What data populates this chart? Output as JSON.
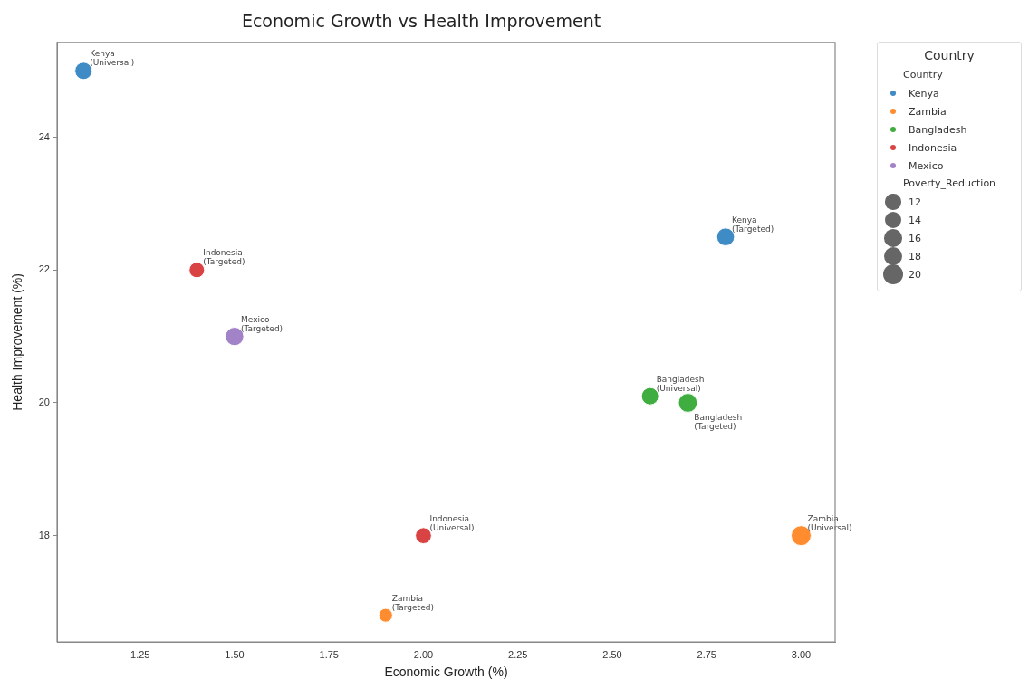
{
  "chart_data": {
    "type": "bubble",
    "title": "Economic Growth vs Health Improvement",
    "xlabel": "Economic Growth (%)",
    "ylabel": "Health Improvement (%)",
    "legend_title": "Country",
    "legend": "right",
    "grid": false,
    "xlim": [
      1.03,
      3.09
    ],
    "xticks": [
      1.25,
      {
        "value": 1.5,
        "label": "1.50"
      },
      1.75,
      {
        "value": 2.0,
        "label": "2.00"
      },
      2.25,
      {
        "value": 2.5,
        "label": "2.50"
      },
      2.75,
      {
        "value": 3.0,
        "label": "3.00"
      }
    ],
    "ylim": [
      16.4,
      25.43
    ],
    "yticks": [
      18,
      20,
      22,
      24
    ],
    "size_legend": [
      12,
      14,
      16,
      18,
      20
    ],
    "series": [
      {
        "name": "Kenya",
        "color": "#3f8bc6",
        "x": [
          1.1,
          2.8
        ],
        "values": [
          25.0,
          22.5
        ],
        "sizes": [
          15,
          16
        ]
      },
      {
        "name": "Zambia",
        "color": "#ff8c2e",
        "x": [
          3.0,
          1.9
        ],
        "values": [
          18.0,
          16.8
        ],
        "sizes": [
          20,
          9.5
        ]
      },
      {
        "name": "Bangladesh",
        "color": "#3fad3f",
        "x": [
          2.6,
          2.7
        ],
        "values": [
          20.1,
          20.0
        ],
        "sizes": [
          15,
          18
        ]
      },
      {
        "name": "Indonesia",
        "color": "#d94343",
        "x": [
          1.4,
          2.0
        ],
        "values": [
          22.0,
          18.0
        ],
        "sizes": [
          12,
          13
        ]
      },
      {
        "name": "Mexico",
        "color": "#a283c8",
        "x": [
          1.5
        ],
        "values": [
          21.0
        ],
        "sizes": [
          17
        ]
      }
    ],
    "annotations": [
      "Country",
      "Poverty_Reduction",
      {
        "text": "Kenya\n(Universal)",
        "x": 1.1,
        "y": 25.0
      },
      {
        "text": "Kenya\n(Targeted)",
        "x": 2.8,
        "y": 22.5
      },
      {
        "text": "Indonesia\n(Targeted)",
        "x": 1.4,
        "y": 22.0
      },
      {
        "text": "Mexico\n(Targeted)",
        "x": 1.5,
        "y": 21.0
      },
      {
        "text": "Bangladesh\n(Universal)",
        "x": 2.6,
        "y": 20.1
      },
      {
        "text": "Bangladesh\n(Targeted)",
        "x": 2.7,
        "y": 20.0
      },
      {
        "text": "Indonesia\n(Universal)",
        "x": 2.0,
        "y": 18.0
      },
      {
        "text": "Zambia\n(Universal)",
        "x": 3.0,
        "y": 18.0
      },
      {
        "text": "Zambia\n(Targeted)",
        "x": 1.9,
        "y": 16.8
      }
    ]
  }
}
